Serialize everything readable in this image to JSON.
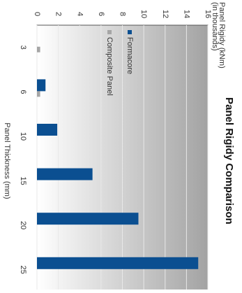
{
  "chart_data": {
    "type": "bar",
    "title": "Panel Rigidy Comparison",
    "y_label": [
      "Panel Rigidy (kNm)",
      "(in thousands)"
    ],
    "x_label": "Panel Thickness (mm)",
    "categories": [
      "3",
      "6",
      "10",
      "15",
      "20",
      "25"
    ],
    "series": [
      {
        "name": "Formacore",
        "color": "#0b4f91",
        "values": [
          0,
          0.8,
          1.9,
          5.2,
          9.5,
          15.1
        ]
      },
      {
        "name": "Composite Panel",
        "color": "#a6a6a6",
        "values": [
          0.3,
          0.3,
          0,
          0,
          0,
          0
        ]
      }
    ],
    "ylim": [
      0,
      16
    ],
    "yticks": [
      0,
      2,
      4,
      6,
      8,
      10,
      12,
      14,
      16
    ],
    "grid": true
  }
}
